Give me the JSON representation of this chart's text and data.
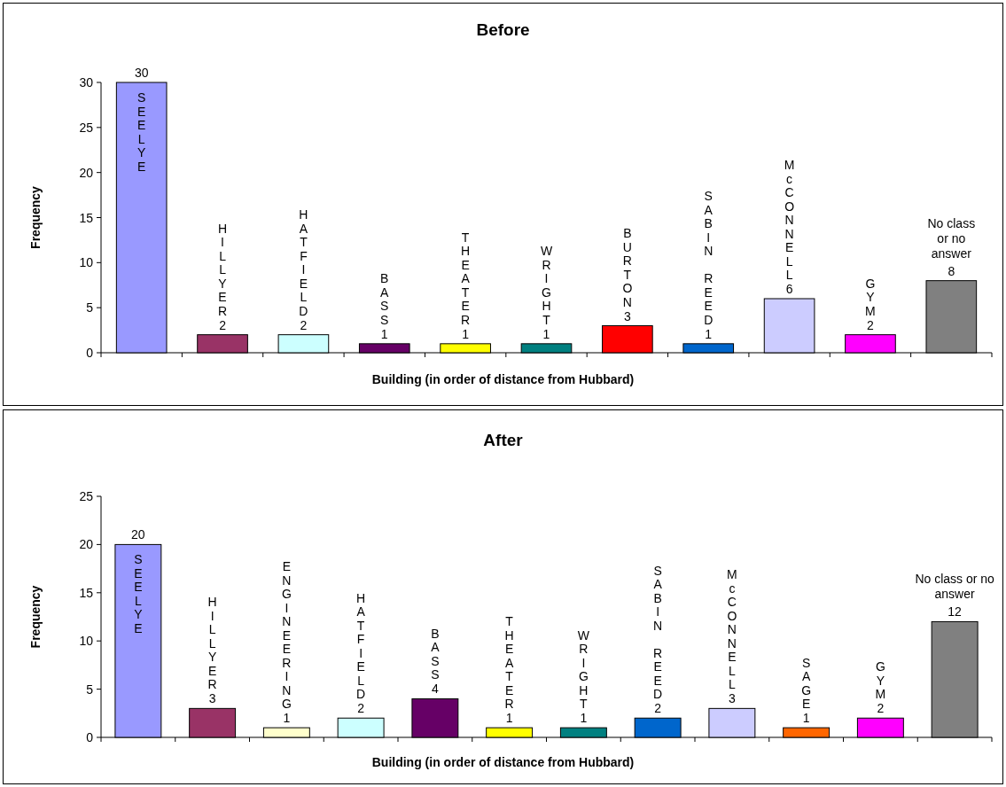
{
  "chart_data": [
    {
      "type": "bar",
      "title": "Before",
      "xlabel": "Building (in order of distance from Hubbard)",
      "ylabel": "Frequency",
      "categories": [
        "SEELYE",
        "HILLYER",
        "HATFIELD",
        "BASS",
        "THEATER",
        "WRIGHT",
        "BURTON",
        "SABIN REED",
        "McCONNELL",
        "GYM",
        "No class or no answer"
      ],
      "values": [
        30,
        2,
        2,
        1,
        1,
        1,
        3,
        1,
        6,
        2,
        8
      ],
      "colors": [
        "#9999ff",
        "#993366",
        "#ccffff",
        "#660066",
        "#ffff00",
        "#008080",
        "#ff0000",
        "#0066cc",
        "#ccccff",
        "#ff00ff",
        "#808080"
      ],
      "ylim": [
        0,
        30
      ],
      "yticks": [
        0,
        5,
        10,
        15,
        20,
        25,
        30
      ],
      "grid": false,
      "data_labels": true
    },
    {
      "type": "bar",
      "title": "After",
      "xlabel": "Building (in order of distance from Hubbard)",
      "ylabel": "Frequency",
      "categories": [
        "SEELYE",
        "HILLYER",
        "ENGINEERING",
        "HATFIELD",
        "BASS",
        "THEATER",
        "WRIGHT",
        "SABIN REED",
        "McCONNELL",
        "SAGE",
        "GYM",
        "No class or no answer"
      ],
      "values": [
        20,
        3,
        1,
        2,
        4,
        1,
        1,
        2,
        3,
        1,
        2,
        12
      ],
      "colors": [
        "#9999ff",
        "#993366",
        "#ffffcc",
        "#ccffff",
        "#660066",
        "#ffff00",
        "#008080",
        "#0066cc",
        "#ccccff",
        "#ff6600",
        "#ff00ff",
        "#808080"
      ],
      "ylim": [
        0,
        25
      ],
      "yticks": [
        0,
        5,
        10,
        15,
        20,
        25
      ],
      "grid": false,
      "data_labels": true
    }
  ]
}
